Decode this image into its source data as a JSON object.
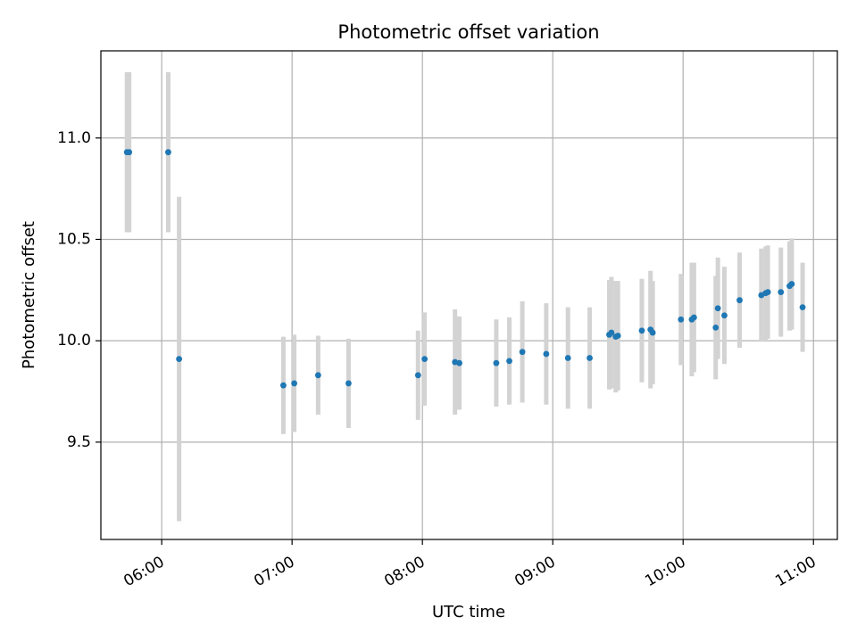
{
  "chart_data": {
    "type": "scatter",
    "title": "Photometric offset variation",
    "xlabel": "UTC time",
    "ylabel": "Photometric offset",
    "xlim": [
      "05:32",
      "11:11"
    ],
    "ylim": [
      9.02,
      11.43
    ],
    "x_ticks": [
      "06:00",
      "07:00",
      "08:00",
      "09:00",
      "10:00",
      "11:00"
    ],
    "y_ticks": [
      9.5,
      10.0,
      10.5,
      11.0
    ],
    "y_tick_labels": [
      "9.5",
      "10.0",
      "10.5",
      "11.0"
    ],
    "grid": true,
    "legend": "none",
    "point_color": "#1f77b4",
    "errorbar_color": "#d3d3d3",
    "points": [
      {
        "time": "05:44",
        "y": 10.93,
        "err": 0.395
      },
      {
        "time": "05:45",
        "y": 10.93,
        "err": 0.395
      },
      {
        "time": "06:03",
        "y": 10.93,
        "err": 0.395
      },
      {
        "time": "06:08",
        "y": 9.91,
        "err": 0.8
      },
      {
        "time": "06:56",
        "y": 9.78,
        "err": 0.24
      },
      {
        "time": "07:01",
        "y": 9.79,
        "err": 0.24
      },
      {
        "time": "07:12",
        "y": 9.83,
        "err": 0.195
      },
      {
        "time": "07:26",
        "y": 9.79,
        "err": 0.22
      },
      {
        "time": "07:58",
        "y": 9.83,
        "err": 0.22
      },
      {
        "time": "08:01",
        "y": 9.91,
        "err": 0.23
      },
      {
        "time": "08:15",
        "y": 9.895,
        "err": 0.26
      },
      {
        "time": "08:17",
        "y": 9.89,
        "err": 0.23
      },
      {
        "time": "08:34",
        "y": 9.89,
        "err": 0.215
      },
      {
        "time": "08:40",
        "y": 9.9,
        "err": 0.215
      },
      {
        "time": "08:46",
        "y": 9.945,
        "err": 0.25
      },
      {
        "time": "08:57",
        "y": 9.935,
        "err": 0.25
      },
      {
        "time": "09:07",
        "y": 9.915,
        "err": 0.25
      },
      {
        "time": "09:17",
        "y": 9.915,
        "err": 0.25
      },
      {
        "time": "09:26",
        "y": 10.03,
        "err": 0.27
      },
      {
        "time": "09:27",
        "y": 10.04,
        "err": 0.275
      },
      {
        "time": "09:29",
        "y": 10.02,
        "err": 0.275
      },
      {
        "time": "09:30",
        "y": 10.025,
        "err": 0.27
      },
      {
        "time": "09:41",
        "y": 10.05,
        "err": 0.255
      },
      {
        "time": "09:45",
        "y": 10.055,
        "err": 0.29
      },
      {
        "time": "09:46",
        "y": 10.04,
        "err": 0.255
      },
      {
        "time": "09:59",
        "y": 10.105,
        "err": 0.225
      },
      {
        "time": "10:04",
        "y": 10.105,
        "err": 0.28
      },
      {
        "time": "10:05",
        "y": 10.115,
        "err": 0.27
      },
      {
        "time": "10:15",
        "y": 10.065,
        "err": 0.255
      },
      {
        "time": "10:16",
        "y": 10.16,
        "err": 0.25
      },
      {
        "time": "10:19",
        "y": 10.125,
        "err": 0.24
      },
      {
        "time": "10:26",
        "y": 10.2,
        "err": 0.235
      },
      {
        "time": "10:36",
        "y": 10.225,
        "err": 0.23
      },
      {
        "time": "10:38",
        "y": 10.235,
        "err": 0.23
      },
      {
        "time": "10:39",
        "y": 10.24,
        "err": 0.23
      },
      {
        "time": "10:45",
        "y": 10.24,
        "err": 0.22
      },
      {
        "time": "10:49",
        "y": 10.27,
        "err": 0.22
      },
      {
        "time": "10:50",
        "y": 10.28,
        "err": 0.225
      },
      {
        "time": "10:55",
        "y": 10.165,
        "err": 0.22
      }
    ]
  }
}
